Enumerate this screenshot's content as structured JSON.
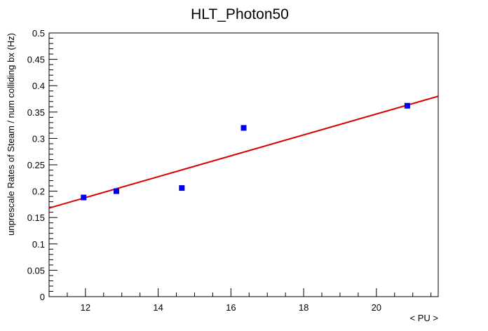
{
  "chart_data": {
    "type": "scatter",
    "title": "HLT_Photon50",
    "xlabel": "< PU >",
    "ylabel": "unprescale Rates of Steam / num colliding bx (Hz)",
    "xlim": [
      11.0,
      21.7
    ],
    "ylim": [
      0,
      0.5
    ],
    "x_ticks": [
      12,
      14,
      16,
      18,
      20
    ],
    "y_ticks": [
      0,
      0.05,
      0.1,
      0.15,
      0.2,
      0.25,
      0.3,
      0.35,
      0.4,
      0.45,
      0.5
    ],
    "x_tick_labels": [
      "12",
      "14",
      "16",
      "18",
      "20"
    ],
    "y_tick_labels": [
      "0",
      "0.05",
      "0.1",
      "0.15",
      "0.2",
      "0.25",
      "0.3",
      "0.35",
      "0.4",
      "0.45",
      "0.5"
    ],
    "grid": false,
    "series": [
      {
        "type": "scatter",
        "marker": "square",
        "color": "#0000ee",
        "points": [
          {
            "x": 11.95,
            "y": 0.188
          },
          {
            "x": 12.85,
            "y": 0.2
          },
          {
            "x": 14.65,
            "y": 0.206
          },
          {
            "x": 16.35,
            "y": 0.32
          },
          {
            "x": 20.85,
            "y": 0.362
          }
        ]
      },
      {
        "type": "fit-line",
        "color": "#dd0000",
        "points": [
          {
            "x": 11.0,
            "y": 0.168
          },
          {
            "x": 21.7,
            "y": 0.38
          }
        ]
      }
    ]
  }
}
